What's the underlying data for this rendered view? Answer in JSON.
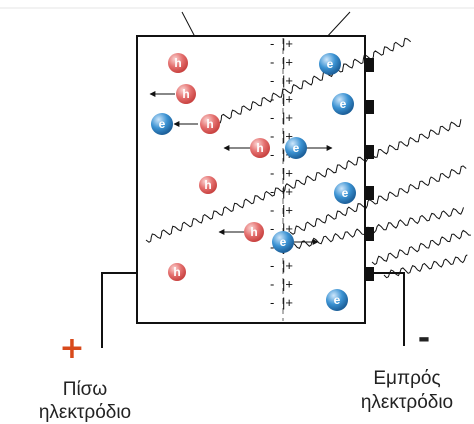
{
  "labels": {
    "back_electrode_line1": "Πίσω",
    "back_electrode_line2": "ηλεκτρόδιο",
    "front_electrode_line1": "Εμπρός",
    "front_electrode_line2": "ηλεκτρόδιο",
    "plus_sign": "+",
    "minus_sign": "-"
  },
  "junction": {
    "minus_glyph": "-",
    "plus_glyph": "|+",
    "rows": 15
  },
  "particles": {
    "hole_letter": "h",
    "electron_letter": "e",
    "hole_color": "#e4706f",
    "electron_color": "#2f86c9"
  },
  "colors": {
    "plus_sign": "#d84a1b",
    "minus_sign": "#222222"
  }
}
